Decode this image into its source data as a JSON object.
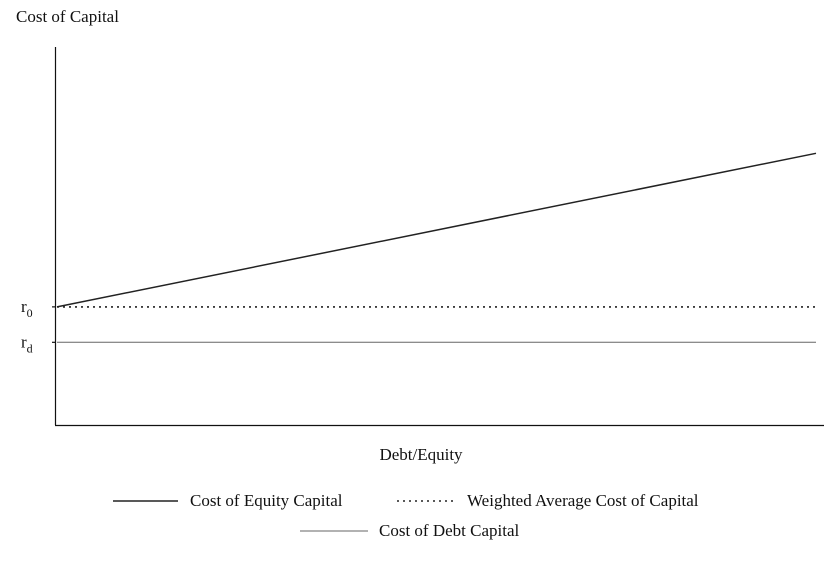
{
  "chart_data": {
    "type": "line",
    "title": "",
    "ylabel": "Cost of Capital",
    "xlabel": "Debt/Equity",
    "y_ticks": [
      {
        "base": "r",
        "sub": "0",
        "value": 1.0
      },
      {
        "base": "r",
        "sub": "d",
        "value": 0.7
      }
    ],
    "xlim": [
      0,
      1
    ],
    "ylim": [
      0,
      3.2
    ],
    "grid": false,
    "legend_position": "bottom",
    "series": [
      {
        "name": "Cost of Equity Capital",
        "style": "solid",
        "color": "#222222",
        "x": [
          0,
          1
        ],
        "y": [
          1.0,
          2.3
        ]
      },
      {
        "name": "Weighted Average Cost of Capital",
        "style": "dotted",
        "color": "#222222",
        "x": [
          0,
          1
        ],
        "y": [
          1.0,
          1.0
        ]
      },
      {
        "name": "Cost of Debt Capital",
        "style": "thin",
        "color": "#666666",
        "x": [
          0,
          1
        ],
        "y": [
          0.7,
          0.7
        ]
      }
    ]
  }
}
